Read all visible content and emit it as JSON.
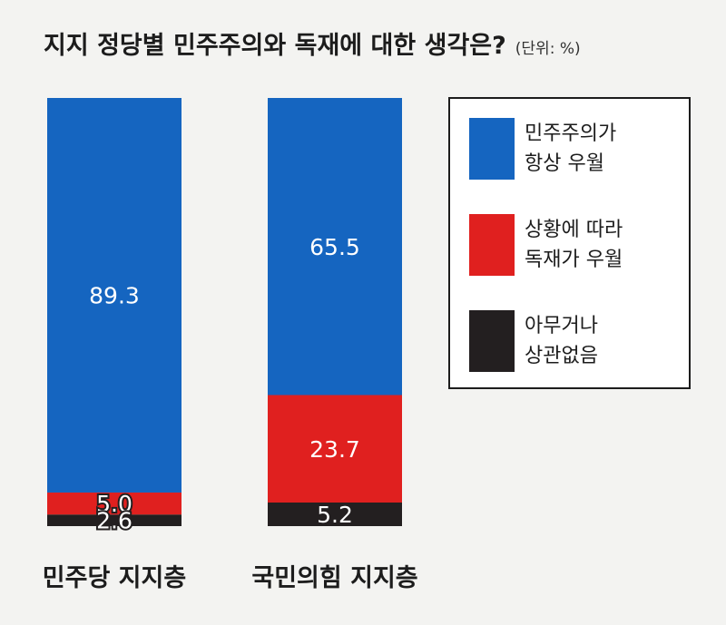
{
  "chart_data": {
    "type": "bar",
    "stacked": true,
    "percent_stacked": true,
    "title": "지지 정당별 민주주의와 독재에 대한 생각은?",
    "unit": "(단위: %)",
    "categories": [
      "민주당 지지층",
      "국민의힘 지지층"
    ],
    "series": [
      {
        "name_lines": [
          "민주주의가",
          "항상 우월"
        ],
        "color": "#1565c0",
        "values": [
          89.3,
          65.5
        ]
      },
      {
        "name_lines": [
          "상황에 따라",
          "독재가 우월"
        ],
        "color": "#e0201f",
        "values": [
          5.0,
          23.7
        ]
      },
      {
        "name_lines": [
          "아무거나",
          "상관없음"
        ],
        "color": "#231f20",
        "values": [
          2.6,
          5.2
        ]
      }
    ],
    "ylim": [
      0,
      100
    ],
    "grid": false,
    "legend_position": "right"
  }
}
